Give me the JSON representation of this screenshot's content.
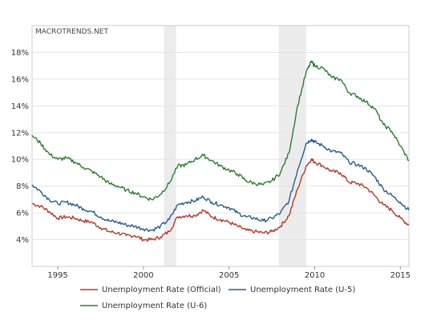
{
  "chart_data": {
    "type": "line",
    "title": "",
    "xlabel": "",
    "ylabel": "",
    "watermark": "MACROTRENDS.NET",
    "xlim": [
      1993.5,
      2015.5
    ],
    "ylim": [
      2,
      20
    ],
    "y_ticks": [
      4,
      6,
      8,
      10,
      12,
      14,
      16,
      18
    ],
    "y_tick_labels": [
      "4%",
      "6%",
      "8%",
      "10%",
      "12%",
      "14%",
      "16%",
      "18%"
    ],
    "x_ticks": [
      1995,
      2000,
      2005,
      2010,
      2015
    ],
    "x_tick_labels": [
      "1995",
      "2000",
      "2005",
      "2010",
      "2015"
    ],
    "grid": true,
    "legend_position": "bottom",
    "recessions": [
      [
        2001.2,
        2001.9
      ],
      [
        2007.9,
        2009.5
      ]
    ],
    "series": [
      {
        "name": "Unemployment Rate (Official)",
        "color": "#b03a2e",
        "points": [
          [
            1993.5,
            6.7
          ],
          [
            1994.0,
            6.5
          ],
          [
            1994.5,
            6.1
          ],
          [
            1995.0,
            5.6
          ],
          [
            1995.5,
            5.7
          ],
          [
            1996.0,
            5.6
          ],
          [
            1996.5,
            5.4
          ],
          [
            1997.0,
            5.3
          ],
          [
            1997.5,
            4.9
          ],
          [
            1998.0,
            4.6
          ],
          [
            1998.5,
            4.5
          ],
          [
            1999.0,
            4.3
          ],
          [
            1999.5,
            4.3
          ],
          [
            2000.0,
            4.0
          ],
          [
            2000.5,
            4.0
          ],
          [
            2001.0,
            4.2
          ],
          [
            2001.5,
            4.6
          ],
          [
            2002.0,
            5.7
          ],
          [
            2002.5,
            5.8
          ],
          [
            2003.0,
            5.8
          ],
          [
            2003.5,
            6.2
          ],
          [
            2004.0,
            5.7
          ],
          [
            2004.5,
            5.5
          ],
          [
            2005.0,
            5.3
          ],
          [
            2005.5,
            5.0
          ],
          [
            2006.0,
            4.7
          ],
          [
            2006.5,
            4.6
          ],
          [
            2007.0,
            4.5
          ],
          [
            2007.5,
            4.6
          ],
          [
            2008.0,
            5.0
          ],
          [
            2008.5,
            5.8
          ],
          [
            2009.0,
            7.8
          ],
          [
            2009.5,
            9.5
          ],
          [
            2009.8,
            10.0
          ],
          [
            2010.0,
            9.8
          ],
          [
            2010.5,
            9.5
          ],
          [
            2011.0,
            9.1
          ],
          [
            2011.5,
            9.0
          ],
          [
            2012.0,
            8.3
          ],
          [
            2012.5,
            8.2
          ],
          [
            2013.0,
            7.9
          ],
          [
            2013.5,
            7.3
          ],
          [
            2014.0,
            6.6
          ],
          [
            2014.5,
            6.2
          ],
          [
            2015.0,
            5.6
          ],
          [
            2015.5,
            5.1
          ]
        ]
      },
      {
        "name": "Unemployment Rate (U-5)",
        "color": "#2b5c8a",
        "points": [
          [
            1993.5,
            8.1
          ],
          [
            1994.0,
            7.6
          ],
          [
            1994.5,
            7.0
          ],
          [
            1995.0,
            6.7
          ],
          [
            1995.5,
            6.8
          ],
          [
            1996.0,
            6.6
          ],
          [
            1996.5,
            6.3
          ],
          [
            1997.0,
            6.1
          ],
          [
            1997.5,
            5.7
          ],
          [
            1998.0,
            5.4
          ],
          [
            1998.5,
            5.3
          ],
          [
            1999.0,
            5.1
          ],
          [
            1999.5,
            5.0
          ],
          [
            2000.0,
            4.8
          ],
          [
            2000.5,
            4.7
          ],
          [
            2001.0,
            5.0
          ],
          [
            2001.5,
            5.5
          ],
          [
            2002.0,
            6.6
          ],
          [
            2002.5,
            6.8
          ],
          [
            2003.0,
            6.9
          ],
          [
            2003.5,
            7.2
          ],
          [
            2004.0,
            6.8
          ],
          [
            2004.5,
            6.6
          ],
          [
            2005.0,
            6.4
          ],
          [
            2005.5,
            6.0
          ],
          [
            2006.0,
            5.7
          ],
          [
            2006.5,
            5.6
          ],
          [
            2007.0,
            5.4
          ],
          [
            2007.5,
            5.6
          ],
          [
            2008.0,
            6.0
          ],
          [
            2008.5,
            6.9
          ],
          [
            2009.0,
            9.2
          ],
          [
            2009.5,
            11.2
          ],
          [
            2009.8,
            11.5
          ],
          [
            2010.0,
            11.3
          ],
          [
            2010.5,
            11.0
          ],
          [
            2011.0,
            10.6
          ],
          [
            2011.5,
            10.5
          ],
          [
            2012.0,
            9.8
          ],
          [
            2012.5,
            9.6
          ],
          [
            2013.0,
            9.3
          ],
          [
            2013.5,
            8.7
          ],
          [
            2014.0,
            7.8
          ],
          [
            2014.5,
            7.3
          ],
          [
            2015.0,
            6.8
          ],
          [
            2015.5,
            6.2
          ]
        ]
      },
      {
        "name": "Unemployment Rate (U-6)",
        "color": "#2e7d32",
        "points": [
          [
            1993.5,
            11.8
          ],
          [
            1994.0,
            11.2
          ],
          [
            1994.5,
            10.4
          ],
          [
            1995.0,
            10.0
          ],
          [
            1995.5,
            10.1
          ],
          [
            1996.0,
            9.8
          ],
          [
            1996.5,
            9.4
          ],
          [
            1997.0,
            9.1
          ],
          [
            1997.5,
            8.7
          ],
          [
            1998.0,
            8.2
          ],
          [
            1998.5,
            8.0
          ],
          [
            1999.0,
            7.7
          ],
          [
            1999.5,
            7.5
          ],
          [
            2000.0,
            7.2
          ],
          [
            2000.5,
            7.0
          ],
          [
            2001.0,
            7.4
          ],
          [
            2001.5,
            8.2
          ],
          [
            2002.0,
            9.5
          ],
          [
            2002.5,
            9.6
          ],
          [
            2003.0,
            10.0
          ],
          [
            2003.5,
            10.3
          ],
          [
            2004.0,
            9.9
          ],
          [
            2004.5,
            9.5
          ],
          [
            2005.0,
            9.2
          ],
          [
            2005.5,
            8.9
          ],
          [
            2006.0,
            8.4
          ],
          [
            2006.5,
            8.2
          ],
          [
            2007.0,
            8.1
          ],
          [
            2007.5,
            8.4
          ],
          [
            2008.0,
            9.0
          ],
          [
            2008.5,
            10.5
          ],
          [
            2009.0,
            14.0
          ],
          [
            2009.5,
            16.5
          ],
          [
            2009.8,
            17.3
          ],
          [
            2010.0,
            17.0
          ],
          [
            2010.5,
            16.8
          ],
          [
            2011.0,
            16.1
          ],
          [
            2011.5,
            16.0
          ],
          [
            2012.0,
            15.0
          ],
          [
            2012.5,
            14.7
          ],
          [
            2013.0,
            14.3
          ],
          [
            2013.5,
            13.8
          ],
          [
            2014.0,
            12.6
          ],
          [
            2014.5,
            12.1
          ],
          [
            2015.0,
            11.0
          ],
          [
            2015.5,
            9.9
          ]
        ]
      }
    ]
  }
}
